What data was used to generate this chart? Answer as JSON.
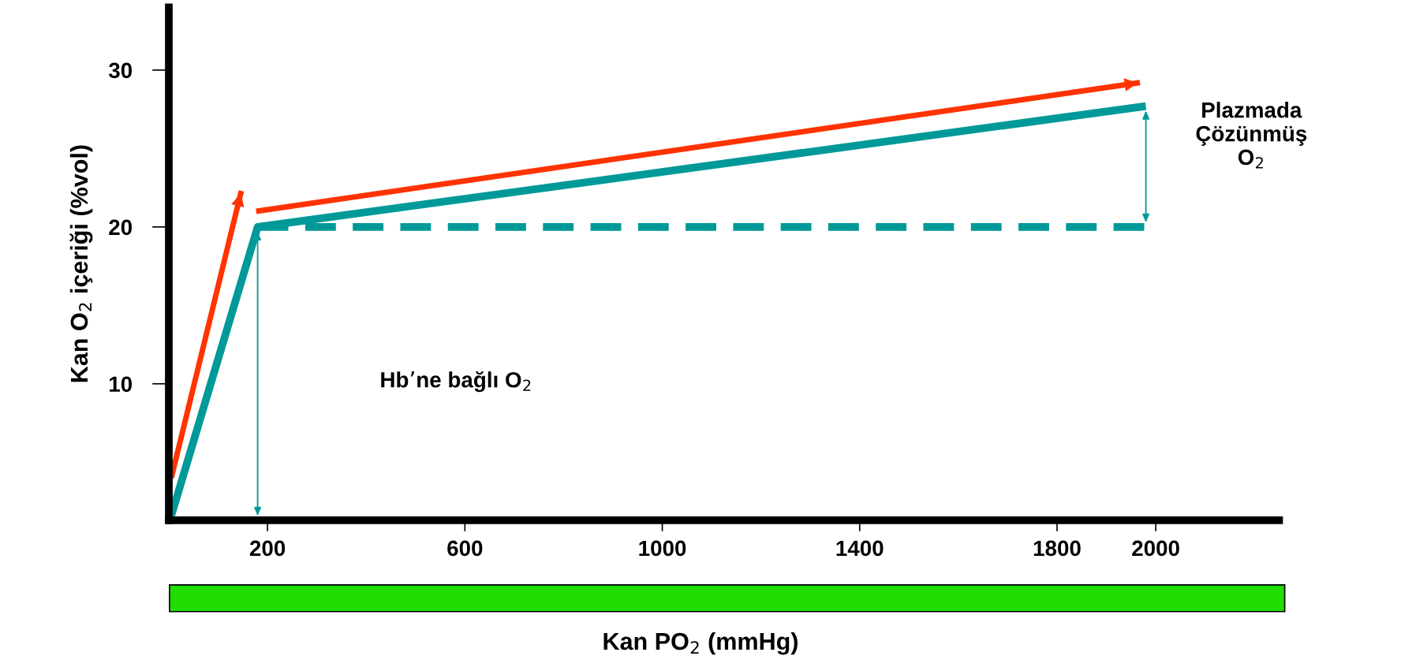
{
  "chart_data": {
    "type": "line",
    "xlabel": "Kan PO$_{2}$ (mmHg)",
    "ylabel": "Kan O$_{2}$ içeriği (%vol)",
    "xlim": [
      0,
      2250
    ],
    "ylim": [
      1.3,
      34
    ],
    "xticks": [
      200,
      600,
      1000,
      1400,
      1800,
      2000
    ],
    "yticks": [
      10,
      20,
      30
    ],
    "grid": false,
    "marker": "none",
    "series": [
      {
        "color": "#ff3300",
        "x": [
          5,
          147,
          160,
          177,
          1968
        ],
        "values": [
          4.0,
          22.3,
          null,
          21.0,
          29.2
        ]
      },
      {
        "color": "#009999",
        "x": [
          5,
          180,
          1980
        ],
        "values": [
          1.6,
          20,
          27.7
        ]
      },
      {
        "color": "#009999",
        "line_style": "dashed",
        "x": [
          180,
          1980
        ],
        "values": [
          20,
          20
        ]
      }
    ],
    "annotations": [
      "Hb’ne bağlı O$_{2}$",
      "Plazmada\nÇözünmüş\nO$_{2}$"
    ]
  }
}
